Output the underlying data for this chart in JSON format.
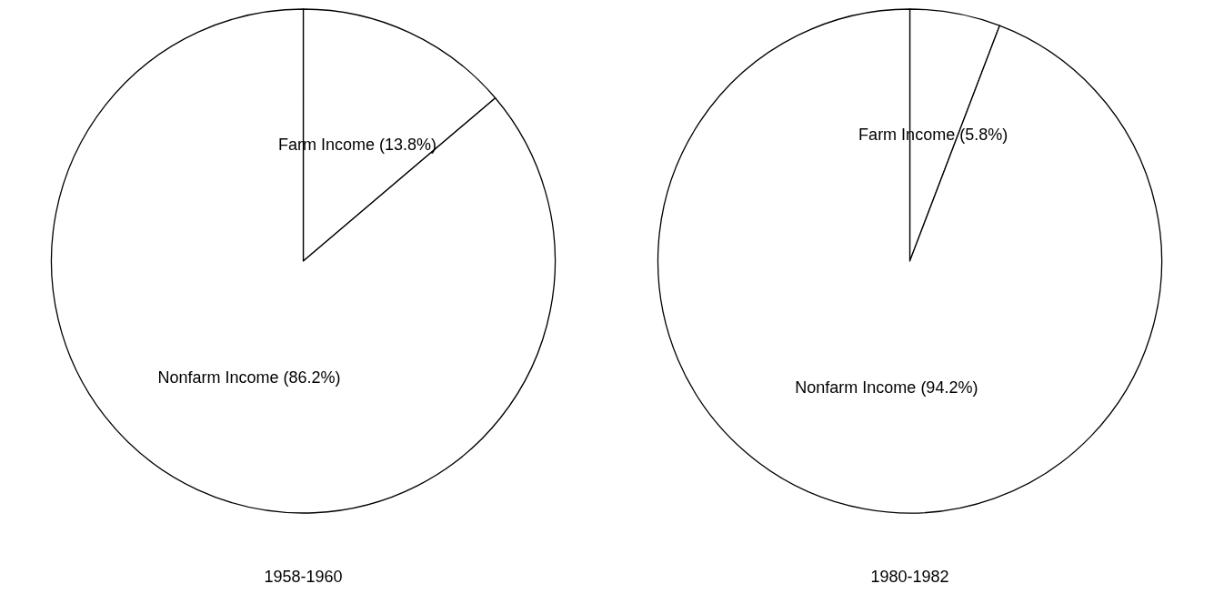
{
  "chart_data": [
    {
      "type": "pie",
      "title": "1958-1960",
      "categories": [
        "Farm Income",
        "Nonfarm Income"
      ],
      "values": [
        13.8,
        86.2
      ],
      "value_labels": [
        "(13.8%)",
        "(86.2%)"
      ],
      "colors": [
        "#ffffff",
        "#ffffff"
      ],
      "legend": false
    },
    {
      "type": "pie",
      "title": "1980-1982",
      "categories": [
        "Farm Income",
        "Nonfarm Income"
      ],
      "values": [
        5.8,
        94.2
      ],
      "value_labels": [
        "(5.8%)",
        "(94.2%)"
      ],
      "colors": [
        "#ffffff",
        "#ffffff"
      ],
      "legend": false
    }
  ]
}
